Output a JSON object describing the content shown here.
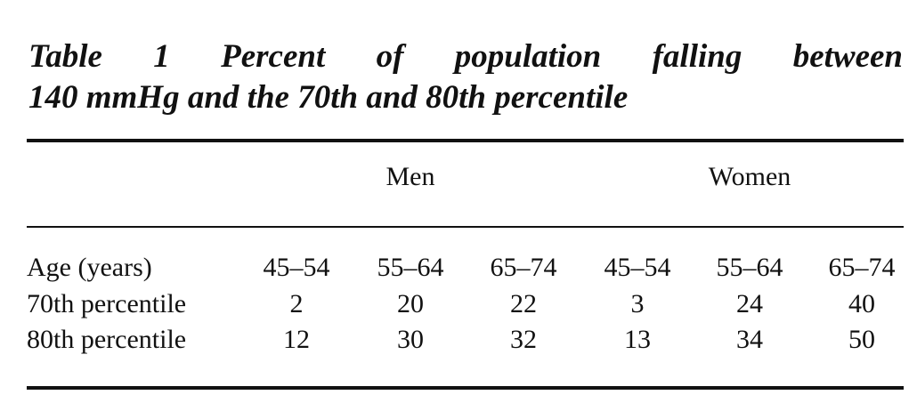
{
  "title": {
    "lines": [
      "Table 1 Percent of population falling between",
      "140 mmHg and the 70th and 80th percentile"
    ]
  },
  "table": {
    "groups": [
      "Men",
      "Women"
    ],
    "header": [
      "Age (years)",
      "45–54",
      "55–64",
      "65–74",
      "45–54",
      "55–64",
      "65–74"
    ],
    "rows": [
      [
        "70th percentile",
        2,
        20,
        22,
        3,
        24,
        40
      ],
      [
        "80th percentile",
        12,
        30,
        32,
        13,
        34,
        50
      ]
    ]
  }
}
